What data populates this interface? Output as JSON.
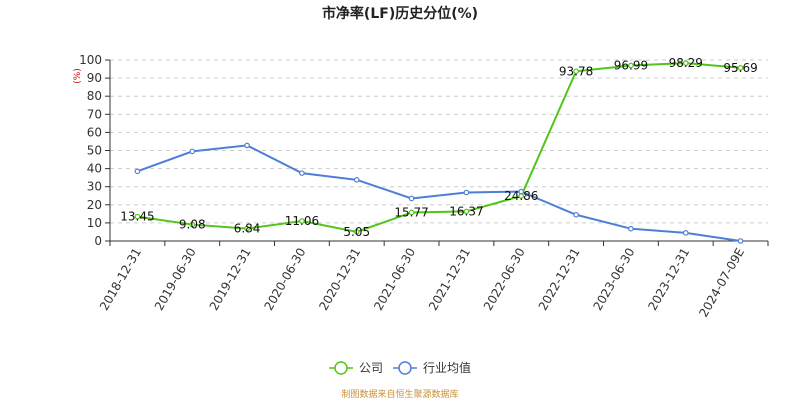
{
  "chart_data": {
    "type": "line",
    "title": "市净率(LF)历史分位(%)",
    "unit": "(%)",
    "categories": [
      "2018-12-31",
      "2019-06-30",
      "2019-12-31",
      "2020-06-30",
      "2020-12-31",
      "2021-06-30",
      "2021-12-31",
      "2022-06-30",
      "2022-12-31",
      "2023-06-30",
      "2023-12-31",
      "2024-07-09E"
    ],
    "ylim": [
      0,
      100
    ],
    "yticks": [
      0,
      10,
      20,
      30,
      40,
      50,
      60,
      70,
      80,
      90,
      100
    ],
    "grid": true,
    "legend_position": "bottom",
    "series": [
      {
        "name": "公司",
        "color": "#52c41a",
        "values": [
          13.45,
          9.08,
          6.84,
          11.06,
          5.05,
          15.77,
          16.37,
          24.86,
          93.78,
          96.99,
          98.29,
          95.69
        ],
        "labels": [
          "13.45",
          "9.08",
          "6.84",
          "11.06",
          "5.05",
          "15.77",
          "16.37",
          "24.86",
          "93.78",
          "96.99",
          "98.29",
          "95.69"
        ]
      },
      {
        "name": "行业均值",
        "color": "#4e7fd8",
        "values": [
          38.5,
          49.5,
          52.8,
          37.5,
          33.8,
          23.5,
          26.8,
          27.3,
          14.5,
          6.8,
          4.5,
          0
        ]
      }
    ]
  },
  "source": "制图数据来自恒生聚源数据库"
}
